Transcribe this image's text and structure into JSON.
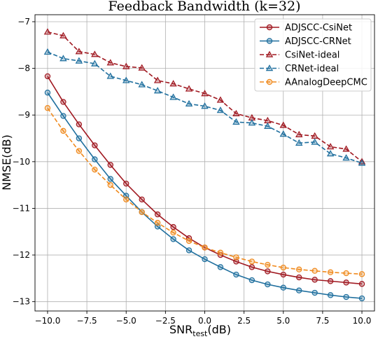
{
  "chart_data": {
    "type": "line",
    "title": "Feedback Bandwidth (k=32)",
    "xlabel": {
      "main": "SNR",
      "sub": "test",
      "suffix": "(dB)"
    },
    "ylabel": "NMSE(dB)",
    "xlim": [
      -10.8,
      10.8
    ],
    "ylim": [
      -13.2,
      -6.85
    ],
    "xticks": [
      -10,
      -7.5,
      -5,
      -2.5,
      0,
      2.5,
      5,
      7.5,
      10
    ],
    "xtick_labels": [
      "−10.0",
      "−7.5",
      "−5.0",
      "−2.5",
      "0.0",
      "2.5",
      "5.0",
      "7.5",
      "10.0"
    ],
    "yticks": [
      -7,
      -8,
      -9,
      -10,
      -11,
      -12,
      -13
    ],
    "ytick_labels": [
      "−7",
      "−8",
      "−9",
      "−10",
      "−11",
      "−12",
      "−13"
    ],
    "grid": true,
    "legend_position": "top-right",
    "x": [
      -10,
      -9,
      -8,
      -7,
      -6,
      -5,
      -4,
      -3,
      -2,
      -1,
      0,
      1,
      2,
      3,
      4,
      5,
      6,
      7,
      8,
      9,
      10
    ],
    "series": [
      {
        "name": "ADJSCC-CsiNet",
        "color": "#a01820",
        "marker": "circle",
        "dashed": false,
        "values": [
          -8.17,
          -8.72,
          -9.2,
          -9.65,
          -10.07,
          -10.47,
          -10.81,
          -11.13,
          -11.4,
          -11.64,
          -11.84,
          -12.0,
          -12.14,
          -12.26,
          -12.35,
          -12.42,
          -12.48,
          -12.53,
          -12.56,
          -12.59,
          -12.62
        ]
      },
      {
        "name": "ADJSCC-CRNet",
        "color": "#1f6f9e",
        "marker": "circle",
        "dashed": false,
        "values": [
          -8.52,
          -9.02,
          -9.5,
          -9.95,
          -10.37,
          -10.73,
          -11.08,
          -11.39,
          -11.66,
          -11.9,
          -12.09,
          -12.26,
          -12.42,
          -12.54,
          -12.63,
          -12.7,
          -12.76,
          -12.81,
          -12.86,
          -12.9,
          -12.93
        ]
      },
      {
        "name": "CsiNet-ideal",
        "color": "#a01820",
        "marker": "triangle",
        "dashed": true,
        "values": [
          -7.22,
          -7.3,
          -7.64,
          -7.7,
          -7.88,
          -7.96,
          -7.99,
          -8.26,
          -8.33,
          -8.44,
          -8.54,
          -8.68,
          -8.97,
          -9.06,
          -9.12,
          -9.22,
          -9.42,
          -9.45,
          -9.68,
          -9.73,
          -10.0
        ]
      },
      {
        "name": "CRNet-ideal",
        "color": "#1f6f9e",
        "marker": "triangle",
        "dashed": true,
        "values": [
          -7.65,
          -7.79,
          -7.84,
          -7.9,
          -8.17,
          -8.26,
          -8.35,
          -8.48,
          -8.62,
          -8.76,
          -8.81,
          -8.9,
          -9.15,
          -9.17,
          -9.24,
          -9.41,
          -9.6,
          -9.58,
          -9.83,
          -9.92,
          -10.03
        ]
      },
      {
        "name": "AAnalogDeepCMC",
        "color": "#f08a1e",
        "marker": "circle",
        "dashed": true,
        "values": [
          -8.85,
          -9.34,
          -9.77,
          -10.17,
          -10.5,
          -10.81,
          -11.08,
          -11.31,
          -11.52,
          -11.7,
          -11.84,
          -11.95,
          -12.05,
          -12.14,
          -12.21,
          -12.27,
          -12.31,
          -12.34,
          -12.37,
          -12.39,
          -12.41
        ]
      }
    ]
  }
}
